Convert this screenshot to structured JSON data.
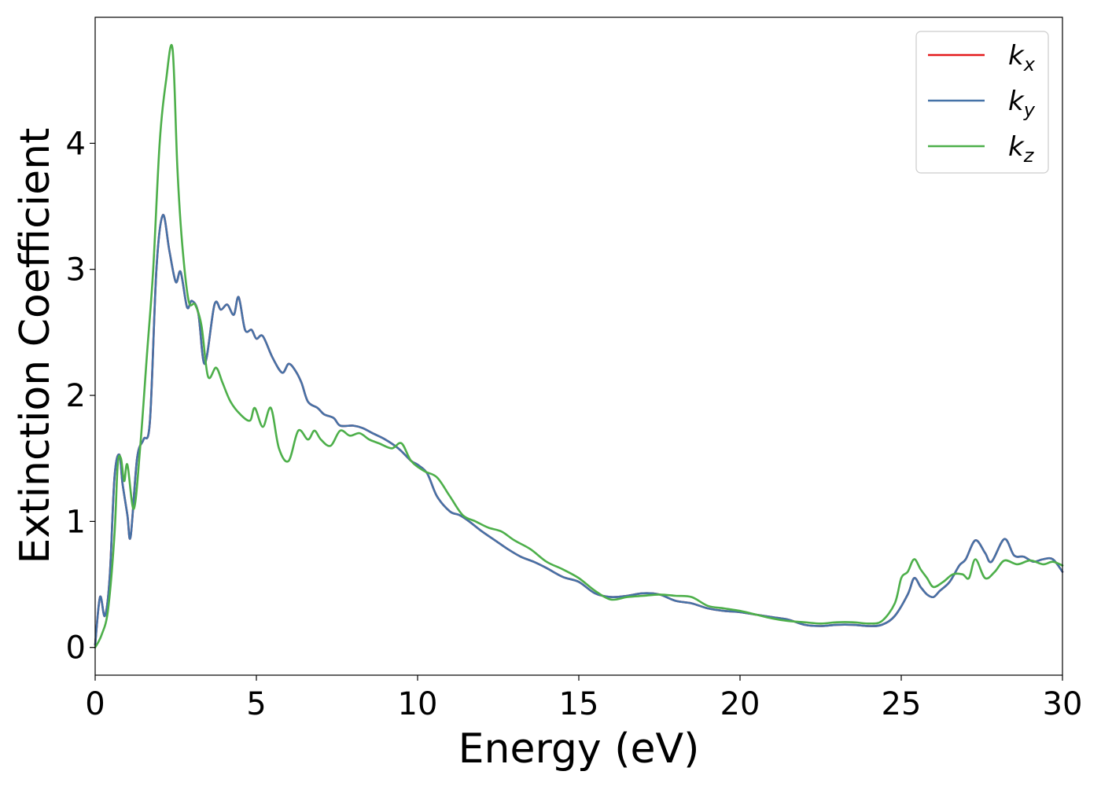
{
  "chart_data": {
    "type": "line",
    "title": "",
    "xlabel": "Energy (eV)",
    "ylabel": "Extinction Coefficient",
    "xlim": [
      0,
      30
    ],
    "ylim": [
      -0.22,
      5.0
    ],
    "xticks": [
      0,
      5,
      10,
      15,
      20,
      25,
      30
    ],
    "yticks": [
      0,
      1,
      2,
      3,
      4
    ],
    "grid": false,
    "legend_position": "top-right",
    "series": [
      {
        "name": "k_x",
        "legend_base": "k",
        "legend_sub": "x",
        "color": "#e41a1c",
        "x": [
          0,
          0.15,
          0.3,
          0.45,
          0.6,
          0.75,
          0.85,
          1.0,
          1.1,
          1.3,
          1.5,
          1.7,
          1.9,
          2.1,
          2.3,
          2.5,
          2.65,
          2.85,
          3.0,
          3.2,
          3.4,
          3.7,
          3.9,
          4.1,
          4.3,
          4.45,
          4.65,
          4.85,
          5.0,
          5.2,
          5.5,
          5.8,
          6.0,
          6.2,
          6.4,
          6.6,
          6.9,
          7.1,
          7.4,
          7.6,
          8.0,
          8.3,
          8.6,
          9.0,
          9.4,
          9.8,
          10.0,
          10.3,
          10.6,
          11.0,
          11.3,
          11.6,
          12.0,
          12.4,
          12.8,
          13.2,
          13.6,
          14.0,
          14.5,
          15.0,
          15.5,
          16.0,
          16.5,
          17.0,
          17.5,
          18.0,
          18.5,
          19.0,
          19.5,
          20.0,
          20.5,
          21.0,
          21.5,
          22.0,
          22.5,
          23.0,
          23.5,
          24.0,
          24.4,
          24.8,
          25.2,
          25.4,
          25.6,
          25.8,
          26.0,
          26.2,
          26.5,
          26.8,
          27.0,
          27.3,
          27.6,
          27.8,
          28.2,
          28.5,
          28.8,
          29.1,
          29.4,
          29.7,
          30.0
        ],
        "y": [
          0.02,
          0.4,
          0.25,
          0.55,
          1.35,
          1.53,
          1.3,
          1.05,
          0.88,
          1.5,
          1.65,
          1.8,
          3.0,
          3.43,
          3.15,
          2.9,
          2.98,
          2.7,
          2.75,
          2.65,
          2.25,
          2.72,
          2.68,
          2.72,
          2.64,
          2.78,
          2.52,
          2.52,
          2.45,
          2.47,
          2.3,
          2.18,
          2.25,
          2.2,
          2.1,
          1.95,
          1.9,
          1.85,
          1.82,
          1.76,
          1.76,
          1.74,
          1.7,
          1.65,
          1.58,
          1.48,
          1.45,
          1.38,
          1.2,
          1.08,
          1.05,
          1.0,
          0.92,
          0.85,
          0.78,
          0.72,
          0.68,
          0.63,
          0.56,
          0.52,
          0.43,
          0.4,
          0.41,
          0.43,
          0.42,
          0.37,
          0.35,
          0.31,
          0.29,
          0.28,
          0.26,
          0.24,
          0.22,
          0.18,
          0.17,
          0.18,
          0.18,
          0.17,
          0.18,
          0.25,
          0.42,
          0.55,
          0.48,
          0.42,
          0.4,
          0.45,
          0.52,
          0.65,
          0.7,
          0.85,
          0.75,
          0.68,
          0.86,
          0.73,
          0.72,
          0.68,
          0.7,
          0.7,
          0.6
        ]
      },
      {
        "name": "k_y",
        "legend_base": "k",
        "legend_sub": "y",
        "color": "#4572a7",
        "x": [
          0,
          0.15,
          0.3,
          0.45,
          0.6,
          0.75,
          0.85,
          1.0,
          1.1,
          1.3,
          1.5,
          1.7,
          1.9,
          2.1,
          2.3,
          2.5,
          2.65,
          2.85,
          3.0,
          3.2,
          3.4,
          3.7,
          3.9,
          4.1,
          4.3,
          4.45,
          4.65,
          4.85,
          5.0,
          5.2,
          5.5,
          5.8,
          6.0,
          6.2,
          6.4,
          6.6,
          6.9,
          7.1,
          7.4,
          7.6,
          8.0,
          8.3,
          8.6,
          9.0,
          9.4,
          9.8,
          10.0,
          10.3,
          10.6,
          11.0,
          11.3,
          11.6,
          12.0,
          12.4,
          12.8,
          13.2,
          13.6,
          14.0,
          14.5,
          15.0,
          15.5,
          16.0,
          16.5,
          17.0,
          17.5,
          18.0,
          18.5,
          19.0,
          19.5,
          20.0,
          20.5,
          21.0,
          21.5,
          22.0,
          22.5,
          23.0,
          23.5,
          24.0,
          24.4,
          24.8,
          25.2,
          25.4,
          25.6,
          25.8,
          26.0,
          26.2,
          26.5,
          26.8,
          27.0,
          27.3,
          27.6,
          27.8,
          28.2,
          28.5,
          28.8,
          29.1,
          29.4,
          29.7,
          30.0
        ],
        "y": [
          0.02,
          0.4,
          0.25,
          0.55,
          1.35,
          1.53,
          1.3,
          1.05,
          0.88,
          1.5,
          1.65,
          1.8,
          3.0,
          3.43,
          3.15,
          2.9,
          2.98,
          2.7,
          2.75,
          2.65,
          2.25,
          2.72,
          2.68,
          2.72,
          2.64,
          2.78,
          2.52,
          2.52,
          2.45,
          2.47,
          2.3,
          2.18,
          2.25,
          2.2,
          2.1,
          1.95,
          1.9,
          1.85,
          1.82,
          1.76,
          1.76,
          1.74,
          1.7,
          1.65,
          1.58,
          1.48,
          1.45,
          1.38,
          1.2,
          1.08,
          1.05,
          1.0,
          0.92,
          0.85,
          0.78,
          0.72,
          0.68,
          0.63,
          0.56,
          0.52,
          0.43,
          0.4,
          0.41,
          0.43,
          0.42,
          0.37,
          0.35,
          0.31,
          0.29,
          0.28,
          0.26,
          0.24,
          0.22,
          0.18,
          0.17,
          0.18,
          0.18,
          0.17,
          0.18,
          0.25,
          0.42,
          0.55,
          0.48,
          0.42,
          0.4,
          0.45,
          0.52,
          0.65,
          0.7,
          0.85,
          0.75,
          0.68,
          0.86,
          0.73,
          0.72,
          0.68,
          0.7,
          0.7,
          0.6
        ]
      },
      {
        "name": "k_z",
        "legend_base": "k",
        "legend_sub": "z",
        "color": "#4daf4a",
        "x": [
          0,
          0.2,
          0.4,
          0.6,
          0.7,
          0.8,
          0.9,
          1.0,
          1.2,
          1.4,
          1.6,
          1.8,
          2.0,
          2.2,
          2.4,
          2.55,
          2.7,
          2.9,
          3.1,
          3.3,
          3.5,
          3.75,
          3.95,
          4.2,
          4.5,
          4.8,
          4.95,
          5.2,
          5.45,
          5.7,
          6.0,
          6.3,
          6.6,
          6.8,
          7.0,
          7.3,
          7.6,
          7.9,
          8.2,
          8.5,
          8.8,
          9.2,
          9.5,
          9.8,
          10.2,
          10.6,
          11.0,
          11.4,
          11.8,
          12.2,
          12.6,
          13.0,
          13.5,
          14.0,
          14.5,
          15.0,
          15.5,
          16.0,
          16.5,
          17.0,
          17.5,
          18.0,
          18.5,
          19.0,
          19.5,
          20.0,
          20.5,
          21.0,
          21.5,
          22.0,
          22.5,
          23.0,
          23.5,
          24.0,
          24.4,
          24.8,
          25.0,
          25.2,
          25.4,
          25.6,
          25.8,
          26.0,
          26.3,
          26.6,
          26.9,
          27.1,
          27.3,
          27.6,
          27.9,
          28.2,
          28.6,
          29.0,
          29.4,
          29.7,
          30.0
        ],
        "y": [
          0.0,
          0.1,
          0.3,
          0.9,
          1.45,
          1.5,
          1.32,
          1.45,
          1.1,
          1.6,
          2.3,
          3.0,
          4.0,
          4.5,
          4.75,
          3.8,
          3.2,
          2.75,
          2.72,
          2.55,
          2.15,
          2.22,
          2.1,
          1.95,
          1.85,
          1.8,
          1.9,
          1.75,
          1.9,
          1.58,
          1.48,
          1.72,
          1.65,
          1.72,
          1.65,
          1.6,
          1.72,
          1.68,
          1.7,
          1.65,
          1.62,
          1.58,
          1.62,
          1.48,
          1.4,
          1.35,
          1.2,
          1.05,
          1.0,
          0.95,
          0.92,
          0.85,
          0.78,
          0.68,
          0.62,
          0.55,
          0.45,
          0.38,
          0.4,
          0.41,
          0.42,
          0.41,
          0.4,
          0.33,
          0.31,
          0.29,
          0.26,
          0.23,
          0.21,
          0.2,
          0.19,
          0.2,
          0.2,
          0.19,
          0.21,
          0.35,
          0.55,
          0.6,
          0.7,
          0.62,
          0.55,
          0.48,
          0.52,
          0.58,
          0.58,
          0.55,
          0.7,
          0.55,
          0.6,
          0.69,
          0.66,
          0.69,
          0.66,
          0.68,
          0.65
        ]
      }
    ]
  }
}
